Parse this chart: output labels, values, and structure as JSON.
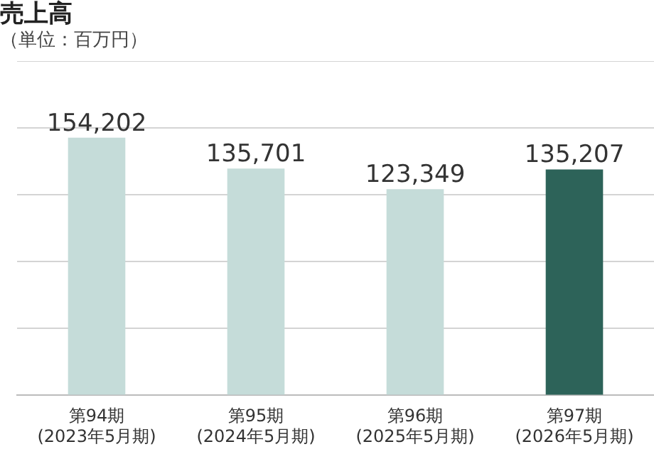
{
  "chart_data": {
    "type": "bar",
    "title": "売上高",
    "subtitle": "（単位：百万円）",
    "categories": [
      "第94期\n(2023年5月期)",
      "第95期\n(2024年5月期)",
      "第96期\n(2025年5月期)",
      "第97期\n(2026年5月期)"
    ],
    "values": [
      154202,
      135701,
      123349,
      135207
    ],
    "colors": [
      "#c5dcd9",
      "#c5dcd9",
      "#c5dcd9",
      "#2d6359"
    ],
    "value_labels": [
      "154,202",
      "135,701",
      "123,349",
      "135,207"
    ],
    "ylim": [
      0,
      200000
    ],
    "yticks": [
      {
        "value": 0,
        "label": null
      },
      {
        "value": 40000,
        "label": null
      },
      {
        "value": 80000,
        "label": null
      },
      {
        "value": 120000,
        "label": null
      },
      {
        "value": 160000,
        "label": null
      },
      {
        "value": 200000,
        "label": null
      }
    ],
    "tick_labels": "x",
    "grid": "y",
    "legend": false
  }
}
